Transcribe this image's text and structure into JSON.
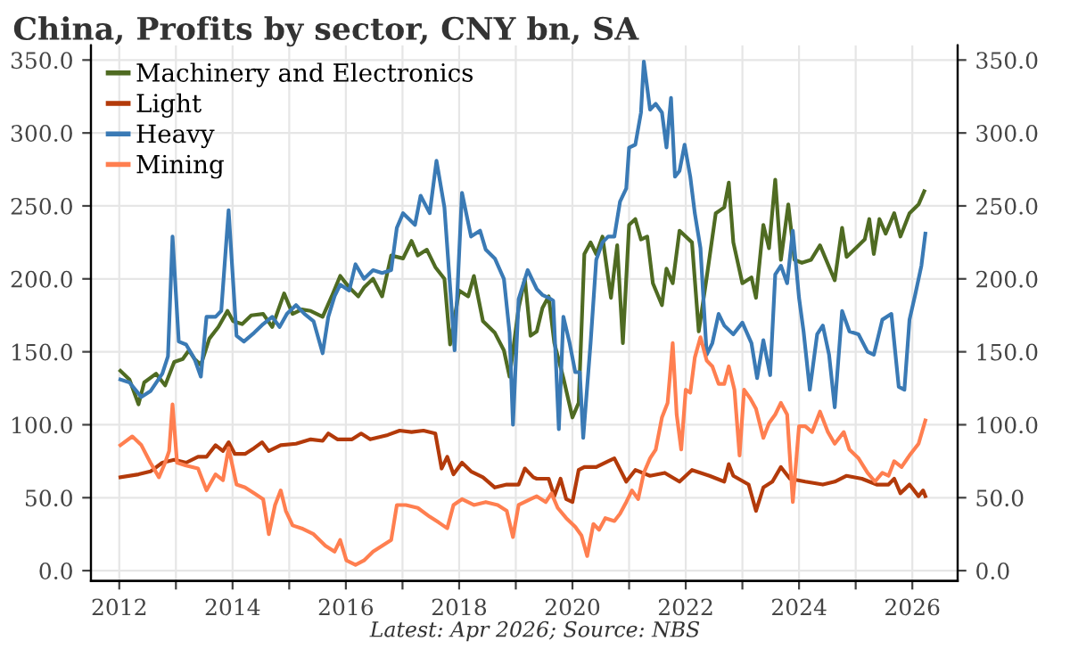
{
  "chart_data": {
    "type": "line",
    "title": "China, Profits by sector, CNY bn, SA",
    "annotations": [
      "Latest: Apr 2026; Source: NBS"
    ],
    "xlim": [
      2011.5,
      2026.8
    ],
    "xticks": [
      2012,
      {
        "value": 2013,
        "label": null
      },
      2014,
      {
        "value": 2015,
        "label": null
      },
      2016,
      {
        "value": 2017,
        "label": null
      },
      2018,
      {
        "value": 2019,
        "label": null
      },
      2020,
      {
        "value": 2021,
        "label": null
      },
      2022,
      {
        "value": 2023,
        "label": null
      },
      2024,
      {
        "value": 2025,
        "label": null
      },
      2026
    ],
    "ylim": [
      -7,
      360
    ],
    "yticks": [
      {
        "value": 0,
        "label": "0.0"
      },
      {
        "value": 50,
        "label": "50.0"
      },
      {
        "value": 100,
        "label": "100.0"
      },
      {
        "value": 150,
        "label": "150.0"
      },
      {
        "value": 200,
        "label": "200.0"
      },
      {
        "value": 250,
        "label": "250.0"
      },
      {
        "value": 300,
        "label": "300.0"
      },
      {
        "value": 350,
        "label": "350.0"
      }
    ],
    "y2lim": [
      -7,
      360
    ],
    "y2ticks": [
      {
        "value": 0,
        "label": "0.0"
      },
      {
        "value": 50,
        "label": "50.0"
      },
      {
        "value": 100,
        "label": "100.0"
      },
      {
        "value": 150,
        "label": "150.0"
      },
      {
        "value": 200,
        "label": "200.0"
      },
      {
        "value": 250,
        "label": "250.0"
      },
      {
        "value": 300,
        "label": "300.0"
      },
      {
        "value": 350,
        "label": "350.0"
      }
    ],
    "grid": true,
    "legend": "top left",
    "marker": "none",
    "line_style": "solid",
    "series": [
      {
        "name": "Machinery and Electronics",
        "color": "#4f6b22",
        "x": [
          2012.02,
          2012.18,
          2012.34,
          2012.44,
          2012.65,
          2012.81,
          2012.97,
          2013.12,
          2013.23,
          2013.33,
          2013.44,
          2013.59,
          2013.75,
          2013.91,
          2014.01,
          2014.17,
          2014.33,
          2014.54,
          2014.7,
          2014.91,
          2015.06,
          2015.22,
          2015.38,
          2015.59,
          2015.75,
          2015.9,
          2016.06,
          2016.22,
          2016.32,
          2016.48,
          2016.64,
          2016.8,
          2017.01,
          2017.16,
          2017.27,
          2017.43,
          2017.58,
          2017.74,
          2017.84,
          2018.0,
          2018.16,
          2018.26,
          2018.42,
          2018.63,
          2018.79,
          2018.89,
          2019.05,
          2019.16,
          2019.26,
          2019.37,
          2019.47,
          2019.58,
          2019.68,
          2019.84,
          2020.0,
          2020.11,
          2020.21,
          2020.32,
          2020.42,
          2020.53,
          2020.68,
          2020.79,
          2020.89,
          2021.0,
          2021.11,
          2021.21,
          2021.32,
          2021.42,
          2021.58,
          2021.66,
          2021.77,
          2021.89,
          2022.11,
          2022.23,
          2022.37,
          2022.53,
          2022.68,
          2022.76,
          2022.84,
          2023.0,
          2023.16,
          2023.24,
          2023.37,
          2023.47,
          2023.58,
          2023.68,
          2023.81,
          2023.92,
          2024.05,
          2024.21,
          2024.37,
          2024.63,
          2024.76,
          2024.84,
          2025.0,
          2025.16,
          2025.24,
          2025.32,
          2025.42,
          2025.53,
          2025.68,
          2025.79,
          2025.95,
          2026.11,
          2026.21
        ],
        "values": [
          137,
          131,
          114,
          129,
          135,
          127,
          143,
          145,
          151,
          145,
          141,
          159,
          167,
          178,
          171,
          169,
          175,
          176,
          167,
          190,
          176,
          179,
          178,
          174,
          188,
          202,
          194,
          188,
          194,
          200,
          188,
          216,
          214,
          226,
          216,
          220,
          208,
          200,
          155,
          192,
          188,
          202,
          171,
          163,
          151,
          133,
          180,
          200,
          161,
          164,
          180,
          188,
          156,
          132,
          105,
          115,
          217,
          225,
          217,
          229,
          187,
          223,
          156,
          237,
          241,
          227,
          229,
          197,
          182,
          207,
          197,
          233,
          225,
          164,
          201,
          245,
          249,
          266,
          225,
          197,
          201,
          187,
          237,
          221,
          268,
          213,
          251,
          213,
          211,
          213,
          223,
          199,
          235,
          215,
          221,
          227,
          241,
          217,
          241,
          231,
          245,
          229,
          245,
          251,
          260
        ]
      },
      {
        "name": "Light",
        "color": "#b33a0a",
        "x": [
          2012.02,
          2012.34,
          2012.55,
          2012.76,
          2012.97,
          2013.18,
          2013.39,
          2013.54,
          2013.7,
          2013.83,
          2013.93,
          2014.04,
          2014.22,
          2014.38,
          2014.52,
          2014.64,
          2014.85,
          2015.12,
          2015.38,
          2015.59,
          2015.69,
          2015.85,
          2016.11,
          2016.27,
          2016.43,
          2016.74,
          2016.95,
          2017.16,
          2017.37,
          2017.58,
          2017.69,
          2017.79,
          2017.9,
          2018.05,
          2018.21,
          2018.42,
          2018.63,
          2018.84,
          2019.05,
          2019.16,
          2019.31,
          2019.37,
          2019.58,
          2019.68,
          2019.79,
          2019.89,
          2020.0,
          2020.11,
          2020.21,
          2020.42,
          2020.63,
          2020.74,
          2020.95,
          2021.11,
          2021.37,
          2021.63,
          2021.89,
          2022.11,
          2022.42,
          2022.68,
          2022.76,
          2022.84,
          2023.11,
          2023.24,
          2023.37,
          2023.53,
          2023.68,
          2023.84,
          2024.11,
          2024.42,
          2024.63,
          2024.84,
          2025.11,
          2025.37,
          2025.58,
          2025.68,
          2025.79,
          2025.95,
          2026.11,
          2026.19,
          2026.23
        ],
        "values": [
          64,
          66,
          68,
          74,
          76,
          74,
          78,
          78,
          86,
          82,
          88,
          80,
          80,
          84,
          88,
          82,
          86,
          87,
          90,
          89,
          94,
          90,
          90,
          94,
          90,
          93,
          96,
          95,
          96,
          94,
          70,
          78,
          66,
          74,
          68,
          64,
          57,
          59,
          59,
          70,
          64,
          63,
          63,
          51,
          63,
          49,
          47,
          69,
          71,
          71,
          75,
          77,
          61,
          69,
          65,
          67,
          61,
          69,
          65,
          61,
          73,
          65,
          59,
          41,
          57,
          61,
          71,
          63,
          61,
          59,
          61,
          65,
          63,
          59,
          59,
          63,
          53,
          59,
          51,
          55,
          51
        ]
      },
      {
        "name": "Heavy",
        "color": "#3a7ab5",
        "x": [
          2012.02,
          2012.18,
          2012.39,
          2012.55,
          2012.76,
          2012.86,
          2012.94,
          2013.05,
          2013.18,
          2013.33,
          2013.44,
          2013.54,
          2013.7,
          2013.8,
          2013.93,
          2014.07,
          2014.2,
          2014.38,
          2014.54,
          2014.7,
          2014.83,
          2014.96,
          2015.12,
          2015.27,
          2015.43,
          2015.59,
          2015.69,
          2015.8,
          2015.9,
          2016.06,
          2016.17,
          2016.32,
          2016.48,
          2016.64,
          2016.8,
          2016.9,
          2017.01,
          2017.22,
          2017.32,
          2017.48,
          2017.6,
          2017.74,
          2017.92,
          2018.05,
          2018.21,
          2018.37,
          2018.47,
          2018.63,
          2018.79,
          2018.89,
          2018.95,
          2019.05,
          2019.21,
          2019.37,
          2019.47,
          2019.58,
          2019.66,
          2019.76,
          2019.84,
          2019.95,
          2020.05,
          2020.13,
          2020.19,
          2020.32,
          2020.42,
          2020.53,
          2020.63,
          2020.74,
          2020.84,
          2020.95,
          2021.0,
          2021.11,
          2021.21,
          2021.26,
          2021.37,
          2021.47,
          2021.58,
          2021.66,
          2021.74,
          2021.81,
          2021.89,
          2021.98,
          2022.08,
          2022.16,
          2022.26,
          2022.37,
          2022.47,
          2022.58,
          2022.68,
          2022.84,
          2023.0,
          2023.16,
          2023.26,
          2023.37,
          2023.49,
          2023.58,
          2023.68,
          2023.79,
          2023.89,
          2024.0,
          2024.08,
          2024.19,
          2024.32,
          2024.42,
          2024.53,
          2024.63,
          2024.76,
          2024.89,
          2025.05,
          2025.21,
          2025.32,
          2025.47,
          2025.63,
          2025.76,
          2025.86,
          2025.95,
          2026.05,
          2026.16,
          2026.23
        ],
        "values": [
          131,
          129,
          119,
          123,
          135,
          147,
          229,
          157,
          155,
          145,
          133,
          174,
          174,
          178,
          247,
          161,
          157,
          163,
          169,
          174,
          167,
          176,
          182,
          176,
          171,
          149,
          174,
          188,
          196,
          192,
          210,
          200,
          206,
          204,
          206,
          235,
          245,
          237,
          257,
          245,
          281,
          249,
          151,
          259,
          229,
          233,
          220,
          214,
          200,
          163,
          100,
          186,
          206,
          193,
          189,
          187,
          185,
          97,
          174,
          156,
          136,
          136,
          91,
          156,
          213,
          225,
          229,
          229,
          253,
          262,
          290,
          292,
          314,
          349,
          316,
          320,
          314,
          290,
          324,
          270,
          274,
          292,
          270,
          245,
          221,
          148,
          156,
          176,
          168,
          162,
          170,
          156,
          132,
          158,
          134,
          203,
          209,
          197,
          233,
          187,
          164,
          124,
          162,
          168,
          148,
          112,
          178,
          164,
          162,
          150,
          148,
          172,
          176,
          126,
          124,
          172,
          189,
          209,
          231
        ]
      },
      {
        "name": "Mining",
        "color": "#ff7f50",
        "x": [
          2012.02,
          2012.23,
          2012.39,
          2012.55,
          2012.7,
          2012.81,
          2012.88,
          2012.94,
          2013.02,
          2013.18,
          2013.39,
          2013.54,
          2013.7,
          2013.83,
          2013.93,
          2014.07,
          2014.22,
          2014.38,
          2014.54,
          2014.64,
          2014.75,
          2014.85,
          2014.94,
          2015.06,
          2015.22,
          2015.43,
          2015.64,
          2015.8,
          2015.9,
          2016.01,
          2016.17,
          2016.32,
          2016.48,
          2016.64,
          2016.8,
          2016.9,
          2017.06,
          2017.27,
          2017.48,
          2017.64,
          2017.79,
          2017.9,
          2018.05,
          2018.26,
          2018.47,
          2018.68,
          2018.84,
          2018.95,
          2019.05,
          2019.26,
          2019.37,
          2019.53,
          2019.63,
          2019.74,
          2019.89,
          2020.05,
          2020.16,
          2020.26,
          2020.37,
          2020.47,
          2020.58,
          2020.74,
          2020.84,
          2020.95,
          2021.05,
          2021.16,
          2021.26,
          2021.37,
          2021.47,
          2021.58,
          2021.68,
          2021.77,
          2021.84,
          2021.92,
          2022.0,
          2022.08,
          2022.16,
          2022.26,
          2022.37,
          2022.47,
          2022.58,
          2022.68,
          2022.76,
          2022.86,
          2022.95,
          2023.03,
          2023.14,
          2023.24,
          2023.37,
          2023.47,
          2023.58,
          2023.68,
          2023.79,
          2023.89,
          2024.0,
          2024.11,
          2024.23,
          2024.37,
          2024.51,
          2024.63,
          2024.79,
          2024.89,
          2025.05,
          2025.21,
          2025.34,
          2025.47,
          2025.58,
          2025.68,
          2025.81,
          2025.95,
          2026.11,
          2026.23
        ],
        "values": [
          86,
          92,
          86,
          74,
          64,
          74,
          82,
          114,
          74,
          72,
          70,
          55,
          66,
          62,
          84,
          59,
          57,
          53,
          49,
          25,
          45,
          55,
          41,
          31,
          29,
          25,
          17,
          13,
          21,
          7,
          4,
          7,
          13,
          17,
          21,
          45,
          45,
          43,
          37,
          33,
          29,
          45,
          49,
          45,
          47,
          45,
          41,
          23,
          45,
          49,
          51,
          47,
          53,
          43,
          36,
          30,
          24,
          10,
          32,
          28,
          36,
          34,
          39,
          47,
          55,
          49,
          67,
          77,
          83,
          105,
          115,
          156,
          107,
          83,
          124,
          122,
          146,
          160,
          144,
          140,
          128,
          128,
          140,
          124,
          79,
          124,
          118,
          111,
          91,
          101,
          107,
          115,
          107,
          47,
          99,
          99,
          95,
          109,
          95,
          87,
          95,
          83,
          77,
          67,
          61,
          67,
          65,
          75,
          71,
          79,
          87,
          103
        ]
      }
    ]
  }
}
